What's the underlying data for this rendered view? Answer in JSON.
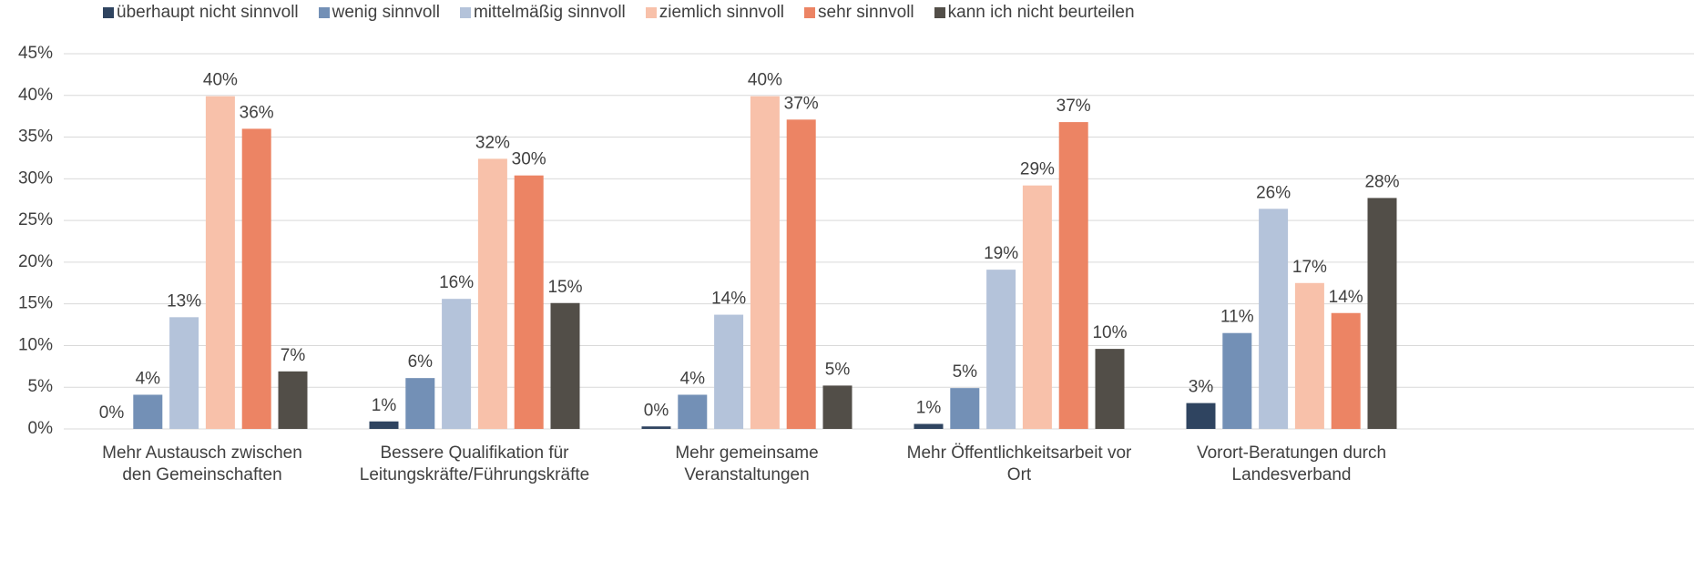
{
  "chart_data": {
    "type": "bar",
    "categories": [
      "Mehr Austausch zwischen\nden Gemeinschaften",
      "Bessere Qualifikation für\nLeitungskräfte/Führungskräfte",
      "Mehr gemeinsame\nVeranstaltungen",
      "Mehr Öffentlichkeitsarbeit vor\nOrt",
      "Vorort-Beratungen durch\nLandesverband"
    ],
    "series": [
      {
        "name": "überhaupt nicht sinnvoll",
        "color": "#2f4460",
        "values": [
          0,
          0.9,
          0.3,
          0.6,
          3.1
        ],
        "value_labels": [
          "0%",
          "1%",
          "0%",
          "1%",
          "3%"
        ]
      },
      {
        "name": "wenig sinnvoll",
        "color": "#7390b6",
        "values": [
          4.1,
          6.1,
          4.1,
          4.9,
          11.5
        ],
        "value_labels": [
          "4%",
          "6%",
          "4%",
          "5%",
          "11%"
        ]
      },
      {
        "name": "mittelmäßig sinnvoll",
        "color": "#b4c3da",
        "values": [
          13.4,
          15.6,
          13.7,
          19.1,
          26.4
        ],
        "value_labels": [
          "13%",
          "16%",
          "14%",
          "19%",
          "26%"
        ]
      },
      {
        "name": "ziemlich sinnvoll",
        "color": "#f8c1aa",
        "values": [
          39.9,
          32.4,
          39.9,
          29.2,
          17.5
        ],
        "value_labels": [
          "40%",
          "32%",
          "40%",
          "29%",
          "17%"
        ]
      },
      {
        "name": "sehr sinnvoll",
        "color": "#ec8464",
        "values": [
          36.0,
          30.4,
          37.1,
          36.8,
          13.9
        ],
        "value_labels": [
          "36%",
          "30%",
          "37%",
          "37%",
          "14%"
        ]
      },
      {
        "name": "kann ich nicht beurteilen",
        "color": "#524e48",
        "values": [
          6.9,
          15.1,
          5.2,
          9.6,
          27.7
        ],
        "value_labels": [
          "7%",
          "15%",
          "5%",
          "10%",
          "28%"
        ]
      }
    ],
    "ylim": [
      0,
      45
    ],
    "yticks": [
      {
        "value": 0,
        "label": "0%"
      },
      {
        "value": 5,
        "label": "5%"
      },
      {
        "value": 10,
        "label": "10%"
      },
      {
        "value": 15,
        "label": "15%"
      },
      {
        "value": 20,
        "label": "20%"
      },
      {
        "value": 25,
        "label": "25%"
      },
      {
        "value": 30,
        "label": "30%"
      },
      {
        "value": 35,
        "label": "35%"
      },
      {
        "value": 40,
        "label": "40%"
      },
      {
        "value": 45,
        "label": "45%"
      }
    ],
    "grid": true,
    "legend": "top"
  }
}
